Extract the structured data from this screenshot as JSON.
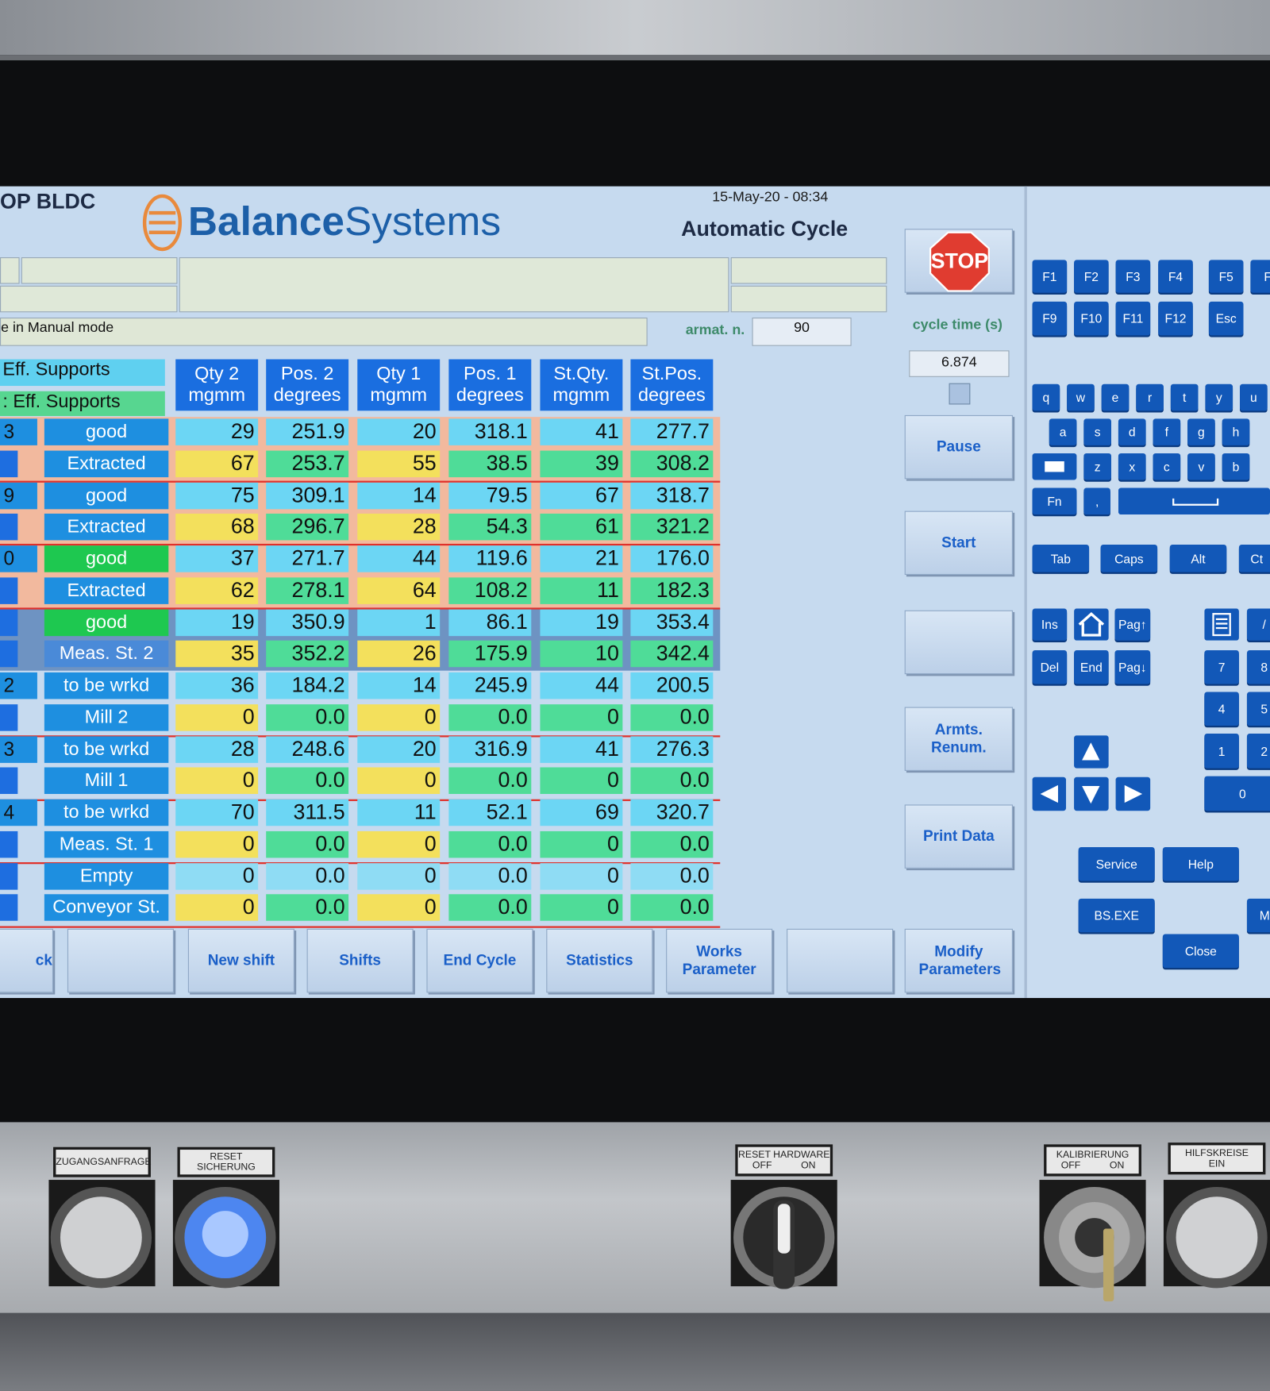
{
  "header": {
    "title": "OP BLDC",
    "brand_a": "Balance",
    "brand_b": "Systems",
    "datetime": "15-May-20 - 08:34",
    "mode": "Automatic Cycle",
    "message": "e in Manual mode",
    "armat_label": "armat. n.",
    "armat_value": "90",
    "cycle_label": "cycle time (s)",
    "cycle_value": "6.874",
    "stop": "STOP"
  },
  "table": {
    "group_headers": [
      "Eff. Supports",
      ": Eff. Supports"
    ],
    "columns": [
      [
        "Qty 2",
        "mgmm"
      ],
      [
        "Pos. 2",
        "degrees"
      ],
      [
        "Qty 1",
        "mgmm"
      ],
      [
        "Pos. 1",
        "degrees"
      ],
      [
        "St.Qty.",
        "mgmm"
      ],
      [
        "St.Pos.",
        "degrees"
      ]
    ],
    "rows": [
      {
        "id": "3",
        "status": "good",
        "values": [
          "29",
          "251.9",
          "20",
          "318.1",
          "41",
          "277.7"
        ]
      },
      {
        "status": "Extracted",
        "values": [
          "67",
          "253.7",
          "55",
          "38.5",
          "39",
          "308.2"
        ]
      },
      {
        "id": "9",
        "status": "good",
        "values": [
          "75",
          "309.1",
          "14",
          "79.5",
          "67",
          "318.7"
        ]
      },
      {
        "status": "Extracted",
        "values": [
          "68",
          "296.7",
          "28",
          "54.3",
          "61",
          "321.2"
        ]
      },
      {
        "id": "0",
        "status": "good",
        "values": [
          "37",
          "271.7",
          "44",
          "119.6",
          "21",
          "176.0"
        ]
      },
      {
        "status": "Extracted",
        "values": [
          "62",
          "278.1",
          "64",
          "108.2",
          "11",
          "182.3"
        ]
      },
      {
        "status": "good",
        "values": [
          "19",
          "350.9",
          "1",
          "86.1",
          "19",
          "353.4"
        ]
      },
      {
        "status": "Meas. St. 2",
        "values": [
          "35",
          "352.2",
          "26",
          "175.9",
          "10",
          "342.4"
        ]
      },
      {
        "id": "2",
        "status": "to be wrkd",
        "values": [
          "36",
          "184.2",
          "14",
          "245.9",
          "44",
          "200.5"
        ]
      },
      {
        "status": "Mill 2",
        "values": [
          "0",
          "0.0",
          "0",
          "0.0",
          "0",
          "0.0"
        ]
      },
      {
        "id": "3",
        "status": "to be wrkd",
        "values": [
          "28",
          "248.6",
          "20",
          "316.9",
          "41",
          "276.3"
        ]
      },
      {
        "status": "Mill 1",
        "values": [
          "0",
          "0.0",
          "0",
          "0.0",
          "0",
          "0.0"
        ]
      },
      {
        "id": "4",
        "status": "to be wrkd",
        "values": [
          "70",
          "311.5",
          "11",
          "52.1",
          "69",
          "320.7"
        ]
      },
      {
        "status": "Meas. St. 1",
        "values": [
          "0",
          "0.0",
          "0",
          "0.0",
          "0",
          "0.0"
        ]
      },
      {
        "status": "Empty",
        "values": [
          "0",
          "0.0",
          "0",
          "0.0",
          "0",
          "0.0"
        ]
      },
      {
        "status": "Conveyor St.",
        "values": [
          "0",
          "0.0",
          "0",
          "0.0",
          "0",
          "0.0"
        ]
      }
    ]
  },
  "side_buttons": [
    "Pause",
    "Start",
    "Armts. Renum.",
    "Print Data",
    "Modify Parameters"
  ],
  "bottom_buttons": [
    "ck",
    "New shift",
    "Shifts",
    "End Cycle",
    "Statistics",
    "Works Parameter"
  ],
  "keyboard": {
    "keys": [
      "F1",
      "F2",
      "F3",
      "F4",
      "F5",
      "F",
      "F9",
      "F10",
      "F11",
      "F12",
      "Esc",
      "q",
      "w",
      "e",
      "r",
      "t",
      "y",
      "u",
      "a",
      "s",
      "d",
      "f",
      "g",
      "h",
      "z",
      "x",
      "c",
      "v",
      "b",
      "Fn",
      ",",
      "Tab",
      "Caps",
      "Alt",
      "Ct",
      "Ins",
      "Pag↑",
      "Del",
      "End",
      "Pag↓",
      "/",
      "7",
      "8",
      "4",
      "5",
      "1",
      "2",
      "0",
      "Service",
      "Help",
      "BS.EXE",
      "M",
      "Close"
    ]
  },
  "panel": {
    "switches": [
      {
        "label": [
          "ZUGANGSANFRAGE"
        ]
      },
      {
        "label": [
          "RESET",
          "SICHERUNG"
        ]
      },
      {
        "label": [
          "RESET HARDWARE"
        ],
        "states": [
          "OFF",
          "ON"
        ]
      },
      {
        "label": [
          "KALIBRIERUNG"
        ],
        "states": [
          "OFF",
          "ON"
        ]
      },
      {
        "label": [
          "HILFSKREISE",
          "EIN"
        ]
      }
    ]
  }
}
